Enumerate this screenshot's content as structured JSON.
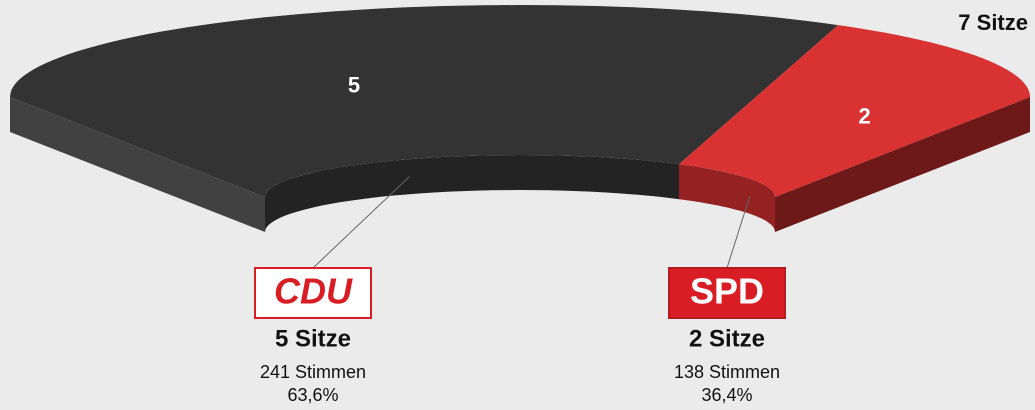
{
  "chart_data": {
    "type": "seats",
    "total_label": "7 Sitze",
    "categories": [
      "CDU",
      "SPD"
    ],
    "values": [
      5,
      2
    ],
    "colors": [
      "#333333",
      "#d93232"
    ],
    "seat_labels": [
      "5 Sitze",
      "2 Sitze"
    ],
    "vote_labels": [
      "241 Stimmen",
      "138 Stimmen"
    ],
    "share_labels": [
      "63,6%",
      "36,4%"
    ]
  }
}
